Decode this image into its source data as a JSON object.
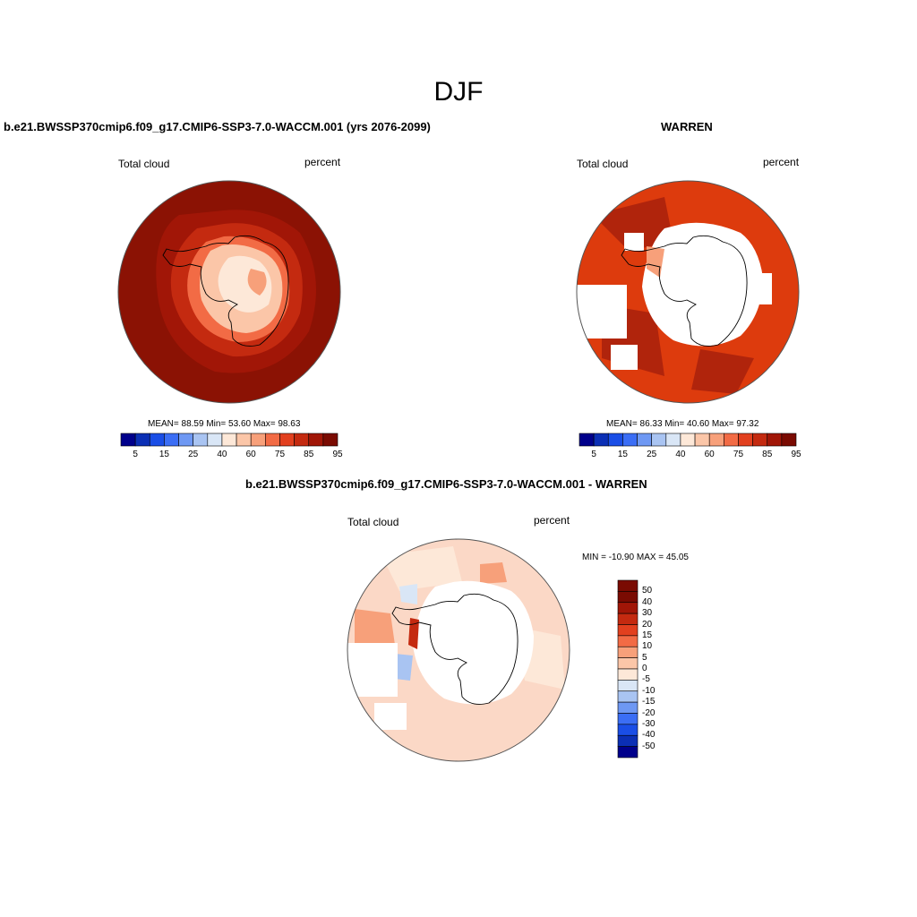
{
  "page_title": "DJF",
  "panels": [
    {
      "title": "b.e21.BWSSP370cmip6.f09_g17.CMIP6-SSP3-7.0-WACCM.001 (yrs 2076-2099)",
      "left_label": "Total cloud",
      "right_label": "percent",
      "stats": "MEAN=  88.59  Min=  53.60  Max=  98.63"
    },
    {
      "title": "WARREN",
      "left_label": "Total cloud",
      "right_label": "percent",
      "stats": "MEAN=  86.33  Min=  40.60  Max=  97.32"
    },
    {
      "title": "b.e21.BWSSP370cmip6.f09_g17.CMIP6-SSP3-7.0-WACCM.001 - WARREN",
      "left_label": "Total cloud",
      "right_label": "percent",
      "stats": "MIN = -10.90 MAX =  45.05"
    }
  ],
  "colorbar_abs": {
    "colors": [
      "#00008b",
      "#0b2fb5",
      "#1a4ee6",
      "#3b6ef5",
      "#6e98f3",
      "#a9c4f2",
      "#d9e6f6",
      "#fde8d8",
      "#fbc6a8",
      "#f7a07a",
      "#f26b45",
      "#e2401f",
      "#c42a10",
      "#a11607",
      "#7a0b02"
    ],
    "tick_labels": [
      "5",
      "15",
      "25",
      "40",
      "60",
      "75",
      "85",
      "95"
    ]
  },
  "colorbar_diff": {
    "colors": [
      "#7a0b02",
      "#a11607",
      "#c42a10",
      "#e2401f",
      "#f26b45",
      "#f7a07a",
      "#fbc6a8",
      "#fde8d8",
      "#d9e6f6",
      "#a9c4f2",
      "#6e98f3",
      "#3b6ef5",
      "#1a4ee6",
      "#0b2fb5",
      "#00008b"
    ],
    "tick_labels": [
      "50",
      "40",
      "30",
      "20",
      "15",
      "10",
      "5",
      "0",
      "-5",
      "-10",
      "-15",
      "-20",
      "-30",
      "-40",
      "-50"
    ]
  },
  "colors": {
    "ocean_high": "#8b1204",
    "ring_high": "#b0240c",
    "warren_ocean": "#dd3b0d",
    "diff_light": "#fbd8c6",
    "diff_pale": "#fde8d8",
    "land_outline": "#000000"
  }
}
